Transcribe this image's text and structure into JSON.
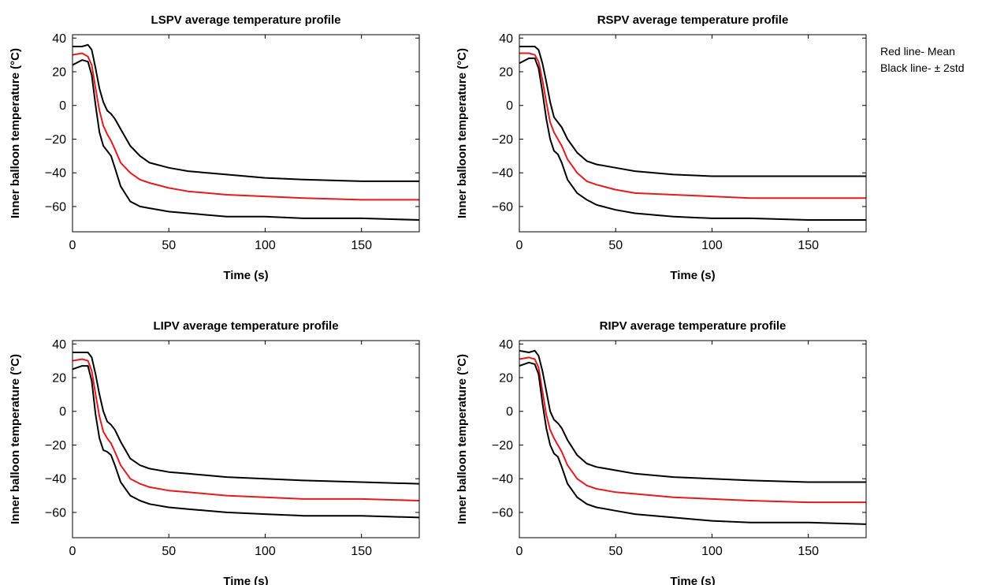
{
  "legend_note": {
    "mean_label": "Red line- Mean",
    "std_label": "Black line- ± 2std"
  },
  "colors": {
    "mean": "#e41a1c",
    "std": "#000000",
    "axis": "#000000"
  },
  "chart_data": [
    {
      "type": "line",
      "title": "LSPV average temperature profile",
      "xlabel": "Time (s)",
      "ylabel": "Inner balloon temperature (°C)",
      "xlim": [
        0,
        180
      ],
      "ylim": [
        -75,
        42
      ],
      "xticks": [
        0,
        50,
        100,
        150
      ],
      "yticks": [
        40,
        20,
        0,
        -20,
        -40,
        -60
      ],
      "grid": false,
      "series": [
        {
          "role": "upper",
          "color": "#000000",
          "x": [
            0,
            5,
            8,
            10,
            12,
            14,
            16,
            18,
            20,
            22,
            25,
            30,
            35,
            40,
            50,
            60,
            80,
            100,
            120,
            150,
            180
          ],
          "y": [
            35,
            35,
            36,
            33,
            22,
            10,
            2,
            -3,
            -5,
            -8,
            -14,
            -24,
            -30,
            -34,
            -37,
            -39,
            -41,
            -43,
            -44,
            -45,
            -45
          ]
        },
        {
          "role": "mean",
          "color": "#e41a1c",
          "x": [
            0,
            5,
            8,
            10,
            12,
            14,
            16,
            18,
            20,
            22,
            25,
            30,
            35,
            40,
            50,
            60,
            80,
            100,
            120,
            150,
            180
          ],
          "y": [
            30,
            31,
            29,
            24,
            10,
            -3,
            -12,
            -17,
            -21,
            -26,
            -34,
            -40,
            -44,
            -46,
            -49,
            -51,
            -53,
            -54,
            -55,
            -56,
            -56
          ]
        },
        {
          "role": "lower",
          "color": "#000000",
          "x": [
            0,
            5,
            8,
            10,
            12,
            14,
            16,
            18,
            20,
            22,
            25,
            30,
            35,
            40,
            50,
            60,
            80,
            100,
            120,
            150,
            180
          ],
          "y": [
            24,
            27,
            26,
            18,
            0,
            -16,
            -24,
            -27,
            -30,
            -37,
            -48,
            -57,
            -60,
            -61,
            -63,
            -64,
            -66,
            -66,
            -67,
            -67,
            -68
          ]
        }
      ]
    },
    {
      "type": "line",
      "title": "RSPV average temperature profile",
      "xlabel": "Time (s)",
      "ylabel": "Inner balloon temperature (°C)",
      "xlim": [
        0,
        180
      ],
      "ylim": [
        -75,
        42
      ],
      "xticks": [
        0,
        50,
        100,
        150
      ],
      "yticks": [
        40,
        20,
        0,
        -20,
        -40,
        -60
      ],
      "grid": false,
      "series": [
        {
          "role": "upper",
          "color": "#000000",
          "x": [
            0,
            5,
            8,
            10,
            12,
            14,
            16,
            18,
            20,
            22,
            25,
            30,
            35,
            40,
            50,
            60,
            80,
            100,
            120,
            150,
            180
          ],
          "y": [
            35,
            35,
            35,
            33,
            25,
            14,
            2,
            -7,
            -10,
            -13,
            -20,
            -28,
            -33,
            -35,
            -37,
            -39,
            -41,
            -42,
            -42,
            -42,
            -42
          ]
        },
        {
          "role": "mean",
          "color": "#e41a1c",
          "x": [
            0,
            5,
            8,
            10,
            12,
            14,
            16,
            18,
            20,
            22,
            25,
            30,
            35,
            40,
            50,
            60,
            80,
            100,
            120,
            150,
            180
          ],
          "y": [
            31,
            31,
            30,
            26,
            15,
            2,
            -10,
            -16,
            -20,
            -24,
            -32,
            -40,
            -45,
            -47,
            -50,
            -52,
            -53,
            -54,
            -55,
            -55,
            -55
          ]
        },
        {
          "role": "lower",
          "color": "#000000",
          "x": [
            0,
            5,
            8,
            10,
            12,
            14,
            16,
            18,
            20,
            22,
            25,
            30,
            35,
            40,
            50,
            60,
            80,
            100,
            120,
            150,
            180
          ],
          "y": [
            25,
            28,
            28,
            22,
            8,
            -8,
            -20,
            -27,
            -29,
            -34,
            -44,
            -52,
            -56,
            -59,
            -62,
            -64,
            -66,
            -67,
            -67,
            -68,
            -68
          ]
        }
      ]
    },
    {
      "type": "line",
      "title": "LIPV average temperature profile",
      "xlabel": "Time (s)",
      "ylabel": "Inner balloon temperature (°C)",
      "xlim": [
        0,
        180
      ],
      "ylim": [
        -75,
        42
      ],
      "xticks": [
        0,
        50,
        100,
        150
      ],
      "yticks": [
        40,
        20,
        0,
        -20,
        -40,
        -60
      ],
      "grid": false,
      "series": [
        {
          "role": "upper",
          "color": "#000000",
          "x": [
            0,
            5,
            8,
            10,
            12,
            14,
            16,
            18,
            20,
            22,
            25,
            30,
            35,
            40,
            50,
            60,
            80,
            100,
            120,
            150,
            180
          ],
          "y": [
            35,
            35,
            35,
            32,
            22,
            10,
            0,
            -6,
            -8,
            -11,
            -18,
            -28,
            -32,
            -34,
            -36,
            -37,
            -39,
            -40,
            -41,
            -42,
            -43
          ]
        },
        {
          "role": "mean",
          "color": "#e41a1c",
          "x": [
            0,
            5,
            8,
            10,
            12,
            14,
            16,
            18,
            20,
            22,
            25,
            30,
            35,
            40,
            50,
            60,
            80,
            100,
            120,
            150,
            180
          ],
          "y": [
            30,
            31,
            30,
            24,
            10,
            -3,
            -12,
            -16,
            -19,
            -24,
            -32,
            -40,
            -43,
            -45,
            -47,
            -48,
            -50,
            -51,
            -52,
            -52,
            -53
          ]
        },
        {
          "role": "lower",
          "color": "#000000",
          "x": [
            0,
            5,
            8,
            10,
            12,
            14,
            16,
            18,
            20,
            22,
            25,
            30,
            35,
            40,
            50,
            60,
            80,
            100,
            120,
            150,
            180
          ],
          "y": [
            25,
            27,
            27,
            18,
            -2,
            -16,
            -23,
            -24,
            -26,
            -32,
            -42,
            -50,
            -53,
            -55,
            -57,
            -58,
            -60,
            -61,
            -62,
            -62,
            -63
          ]
        }
      ]
    },
    {
      "type": "line",
      "title": "RIPV average temperature profile",
      "xlabel": "Time (s)",
      "ylabel": "Inner balloon temperature (°C)",
      "xlim": [
        0,
        180
      ],
      "ylim": [
        -75,
        42
      ],
      "xticks": [
        0,
        50,
        100,
        150
      ],
      "yticks": [
        40,
        20,
        0,
        -20,
        -40,
        -60
      ],
      "grid": false,
      "series": [
        {
          "role": "upper",
          "color": "#000000",
          "x": [
            0,
            5,
            8,
            10,
            12,
            14,
            16,
            18,
            20,
            22,
            25,
            30,
            35,
            40,
            50,
            60,
            80,
            100,
            120,
            150,
            180
          ],
          "y": [
            36,
            35,
            36,
            33,
            24,
            12,
            0,
            -5,
            -7,
            -10,
            -17,
            -26,
            -31,
            -33,
            -35,
            -37,
            -39,
            -40,
            -41,
            -42,
            -42
          ]
        },
        {
          "role": "mean",
          "color": "#e41a1c",
          "x": [
            0,
            5,
            8,
            10,
            12,
            14,
            16,
            18,
            20,
            22,
            25,
            30,
            35,
            40,
            50,
            60,
            80,
            100,
            120,
            150,
            180
          ],
          "y": [
            31,
            32,
            31,
            26,
            12,
            -2,
            -11,
            -16,
            -20,
            -24,
            -32,
            -40,
            -44,
            -46,
            -48,
            -49,
            -51,
            -52,
            -53,
            -54,
            -54
          ]
        },
        {
          "role": "lower",
          "color": "#000000",
          "x": [
            0,
            5,
            8,
            10,
            12,
            14,
            16,
            18,
            20,
            22,
            25,
            30,
            35,
            40,
            50,
            60,
            80,
            100,
            120,
            150,
            180
          ],
          "y": [
            27,
            29,
            28,
            22,
            5,
            -10,
            -20,
            -25,
            -27,
            -33,
            -43,
            -51,
            -55,
            -57,
            -59,
            -61,
            -63,
            -65,
            -66,
            -66,
            -67
          ]
        }
      ]
    }
  ]
}
